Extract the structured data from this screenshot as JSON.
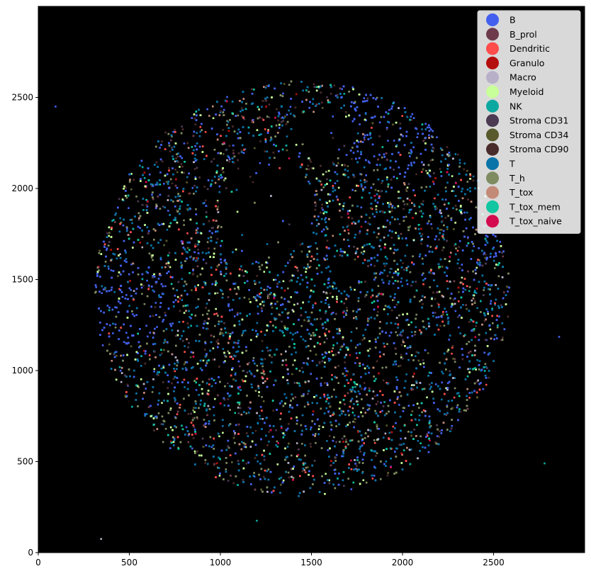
{
  "chart_data": {
    "type": "scatter",
    "title": "",
    "xlabel": "",
    "ylabel": "",
    "xlim": [
      0,
      3000
    ],
    "ylim": [
      0,
      3000
    ],
    "x_ticks": [
      0,
      500,
      1000,
      1500,
      2000,
      2500
    ],
    "y_ticks": [
      0,
      500,
      1000,
      1500,
      2000,
      2500
    ],
    "background_color": "#000000",
    "grid": false,
    "legend_placement": "top-right",
    "region": {
      "shape": "circle",
      "center": [
        1450,
        1450
      ],
      "radius": 1140
    },
    "series": [
      {
        "name": "B",
        "color": "#4361ee",
        "weight": 16
      },
      {
        "name": "B_prol",
        "color": "#6e3b4d",
        "weight": 2
      },
      {
        "name": "Dendritic",
        "color": "#ff4d4d",
        "weight": 5
      },
      {
        "name": "Granulo",
        "color": "#b50e0e",
        "weight": 1
      },
      {
        "name": "Macro",
        "color": "#b8b0c8",
        "weight": 3
      },
      {
        "name": "Myeloid",
        "color": "#c9ff9a",
        "weight": 8
      },
      {
        "name": "NK",
        "color": "#0ba8a0",
        "weight": 3
      },
      {
        "name": "Stroma CD31",
        "color": "#4b3a52",
        "weight": 3
      },
      {
        "name": "Stroma CD34",
        "color": "#585a2c",
        "weight": 3
      },
      {
        "name": "Stroma CD90",
        "color": "#4a2b2b",
        "weight": 6
      },
      {
        "name": "T",
        "color": "#0a73a8",
        "weight": 28
      },
      {
        "name": "T_h",
        "color": "#7f8c62",
        "weight": 12
      },
      {
        "name": "T_tox",
        "color": "#c48a78",
        "weight": 4
      },
      {
        "name": "T_tox_mem",
        "color": "#11c6a0",
        "weight": 3
      },
      {
        "name": "T_tox_naive",
        "color": "#d40b4f",
        "weight": 1
      }
    ],
    "outliers": [
      {
        "x": 95,
        "y": 2450,
        "color": "#4361ee"
      },
      {
        "x": 345,
        "y": 75,
        "color": "#b8b0c8"
      },
      {
        "x": 1200,
        "y": 175,
        "color": "#0ba8a0"
      },
      {
        "x": 2780,
        "y": 490,
        "color": "#0ba8a0"
      },
      {
        "x": 2860,
        "y": 1185,
        "color": "#4361ee"
      }
    ]
  }
}
